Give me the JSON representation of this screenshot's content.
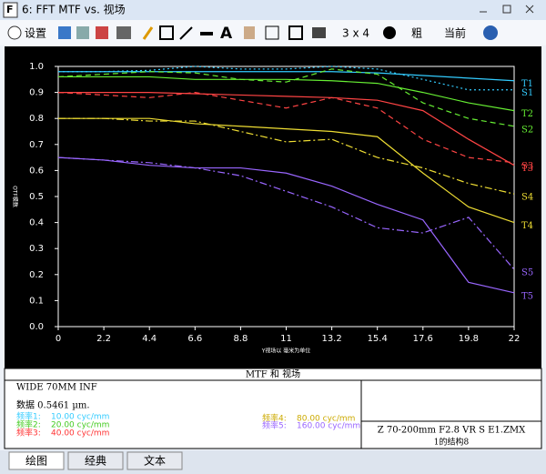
{
  "window": {
    "title": "6: FFT MTF vs. 视场"
  },
  "toolbar": {
    "settings": "设置",
    "layout": "3 x 4",
    "weight": "粗",
    "current": "当前"
  },
  "chart_data": {
    "type": "line",
    "xlabel": "Y视场以 毫米为单位",
    "ylabel": "OTF模数",
    "x": [
      0,
      2.2,
      4.4,
      6.6,
      8.8,
      11,
      13.2,
      15.4,
      17.6,
      19.8,
      22
    ],
    "xlim": [
      0,
      22
    ],
    "xticks": [
      0,
      2.2,
      4.4,
      6.6,
      8.8,
      11,
      13.2,
      15.4,
      17.6,
      19.8,
      22
    ],
    "ylim": [
      0,
      1
    ],
    "yticks": [
      {
        "value": 0,
        "label": "0.0"
      },
      0.1,
      0.2,
      0.3,
      0.4,
      0.5,
      0.6,
      0.7,
      0.8,
      0.9,
      {
        "value": 1,
        "label": "1.0"
      }
    ],
    "series": [
      {
        "name": "T1",
        "color": "#33ccff",
        "dash": "solid",
        "values": [
          0.98,
          0.98,
          0.98,
          0.98,
          0.98,
          0.98,
          0.98,
          0.975,
          0.965,
          0.955,
          0.945
        ]
      },
      {
        "name": "S1",
        "color": "#33ccff",
        "dash": "dot",
        "values": [
          0.98,
          0.98,
          0.985,
          1.0,
          0.99,
          0.99,
          1.0,
          0.99,
          0.95,
          0.91,
          0.91
        ]
      },
      {
        "name": "T2",
        "color": "#66ee33",
        "dash": "solid",
        "values": [
          0.96,
          0.96,
          0.96,
          0.95,
          0.95,
          0.95,
          0.945,
          0.935,
          0.9,
          0.86,
          0.83
        ]
      },
      {
        "name": "S2",
        "color": "#66ee33",
        "dash": "dash",
        "values": [
          0.96,
          0.97,
          0.98,
          0.975,
          0.95,
          0.94,
          0.99,
          0.97,
          0.86,
          0.8,
          0.77
        ]
      },
      {
        "name": "S3",
        "color": "#ff4444",
        "dash": "dash",
        "values": [
          0.9,
          0.89,
          0.88,
          0.9,
          0.87,
          0.84,
          0.88,
          0.84,
          0.72,
          0.65,
          0.63
        ]
      },
      {
        "name": "T3",
        "color": "#ff4444",
        "dash": "solid",
        "values": [
          0.9,
          0.9,
          0.9,
          0.895,
          0.89,
          0.885,
          0.88,
          0.87,
          0.83,
          0.72,
          0.62
        ]
      },
      {
        "name": "S4",
        "color": "#eedd33",
        "dash": "dashdot",
        "values": [
          0.8,
          0.8,
          0.79,
          0.79,
          0.75,
          0.71,
          0.72,
          0.65,
          0.61,
          0.55,
          0.51
        ]
      },
      {
        "name": "T4",
        "color": "#eedd33",
        "dash": "solid",
        "values": [
          0.8,
          0.8,
          0.8,
          0.78,
          0.77,
          0.76,
          0.75,
          0.73,
          0.59,
          0.46,
          0.4
        ]
      },
      {
        "name": "S5",
        "color": "#9966ff",
        "dash": "dashdot",
        "values": [
          0.65,
          0.64,
          0.63,
          0.61,
          0.58,
          0.52,
          0.46,
          0.38,
          0.36,
          0.42,
          0.22
        ]
      },
      {
        "name": "T5",
        "color": "#9966ff",
        "dash": "solid",
        "values": [
          0.65,
          0.64,
          0.62,
          0.61,
          0.61,
          0.59,
          0.54,
          0.47,
          0.41,
          0.17,
          0.13
        ]
      }
    ]
  },
  "info": {
    "title": "MTF 和 视场",
    "config": "WIDE 70MM INF",
    "wavelength": "数据 0.5461 µm.",
    "frequencies": [
      {
        "label": "频率1:",
        "value": "10.00 cyc/mm",
        "color": "#33ccff"
      },
      {
        "label": "频率2:",
        "value": "20.00 cyc/mm",
        "color": "#44cc22"
      },
      {
        "label": "频率3:",
        "value": "40.00 cyc/mm",
        "color": "#ff3333"
      },
      {
        "label": "频率4:",
        "value": "80.00 cyc/mm",
        "color": "#ccaa00"
      },
      {
        "label": "频率5:",
        "value": "160.00 cyc/mm",
        "color": "#9966ff"
      }
    ],
    "file": "Z 70-200mm F2.8 VR S E1.ZMX",
    "structure": "1的结构8"
  },
  "tabs": [
    "绘图",
    "经典",
    "文本"
  ]
}
